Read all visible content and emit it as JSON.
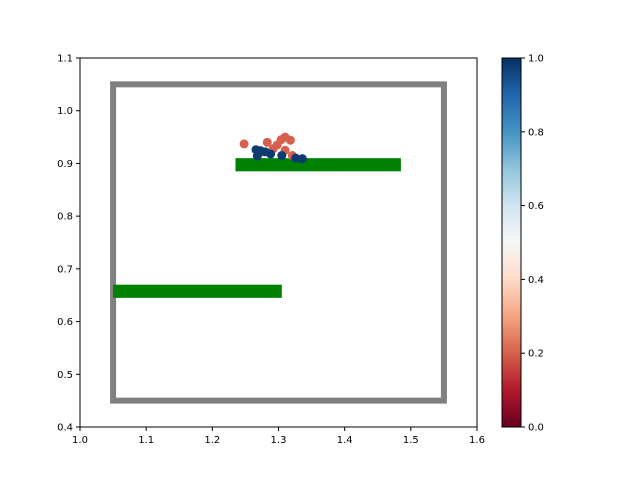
{
  "chart_data": {
    "type": "scatter",
    "title": "",
    "xlabel": "",
    "ylabel": "",
    "xlim": [
      1.0,
      1.6
    ],
    "ylim": [
      0.4,
      1.1
    ],
    "xticks": [
      "1.0",
      "1.1",
      "1.2",
      "1.3",
      "1.4",
      "1.5",
      "1.6"
    ],
    "yticks": [
      "0.4",
      "0.5",
      "0.6",
      "0.7",
      "0.8",
      "0.9",
      "1.0",
      "1.1"
    ],
    "grid": false,
    "colormap": "RdBu",
    "colorbar": {
      "range": [
        0.0,
        1.0
      ],
      "ticks": [
        "0.0",
        "0.2",
        "0.4",
        "0.6",
        "0.8",
        "1.0"
      ]
    },
    "boundary": {
      "x": [
        1.05,
        1.55
      ],
      "y": [
        0.45,
        1.05
      ],
      "color": "#808080"
    },
    "obstacles": [
      {
        "x": [
          1.235,
          1.485
        ],
        "y": [
          0.885,
          0.91
        ],
        "color": "#008000"
      },
      {
        "x": [
          1.05,
          1.305
        ],
        "y": [
          0.645,
          0.67
        ],
        "color": "#008000"
      }
    ],
    "points": [
      {
        "x": 1.248,
        "y": 0.937,
        "c": 0.2
      },
      {
        "x": 1.283,
        "y": 0.94,
        "c": 0.2
      },
      {
        "x": 1.304,
        "y": 0.945,
        "c": 0.2
      },
      {
        "x": 1.31,
        "y": 0.95,
        "c": 0.2
      },
      {
        "x": 1.318,
        "y": 0.944,
        "c": 0.2
      },
      {
        "x": 1.298,
        "y": 0.935,
        "c": 0.2
      },
      {
        "x": 1.31,
        "y": 0.925,
        "c": 0.2
      },
      {
        "x": 1.292,
        "y": 0.928,
        "c": 0.2
      },
      {
        "x": 1.321,
        "y": 0.915,
        "c": 0.2
      },
      {
        "x": 1.275,
        "y": 0.922,
        "c": 0.2
      },
      {
        "x": 1.266,
        "y": 0.926,
        "c": 0.98
      },
      {
        "x": 1.273,
        "y": 0.924,
        "c": 0.98
      },
      {
        "x": 1.28,
        "y": 0.922,
        "c": 0.98
      },
      {
        "x": 1.288,
        "y": 0.918,
        "c": 0.98
      },
      {
        "x": 1.268,
        "y": 0.914,
        "c": 0.98
      },
      {
        "x": 1.305,
        "y": 0.915,
        "c": 0.98
      },
      {
        "x": 1.326,
        "y": 0.91,
        "c": 0.98
      },
      {
        "x": 1.336,
        "y": 0.909,
        "c": 0.98
      }
    ]
  }
}
